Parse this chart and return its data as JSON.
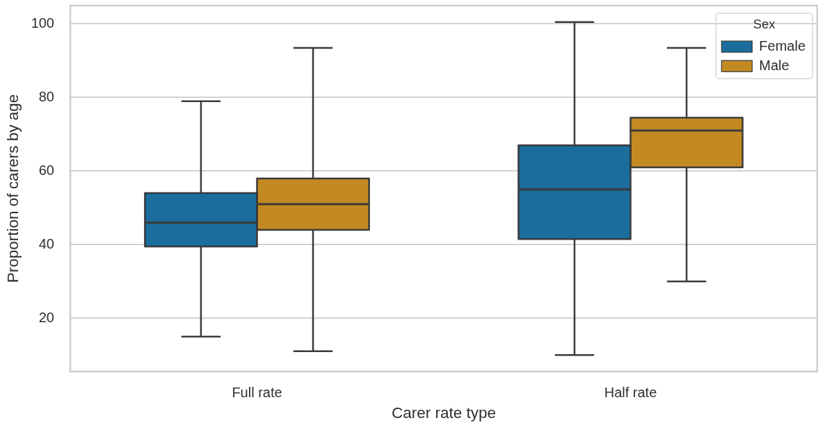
{
  "chart_data": {
    "type": "box",
    "xlabel": "Carer rate type",
    "ylabel": "Proportion of carers by age",
    "legend_title": "Sex",
    "categories": [
      "Full rate",
      "Half rate"
    ],
    "series": [
      {
        "name": "Female",
        "color": "#1a6d9c",
        "boxes": [
          {
            "low": 15,
            "q1": 39.5,
            "median": 46,
            "q3": 54,
            "high": 79
          },
          {
            "low": 10,
            "q1": 41.5,
            "median": 55,
            "q3": 67,
            "high": 100.5
          }
        ]
      },
      {
        "name": "Male",
        "color": "#c48a22",
        "boxes": [
          {
            "low": 11,
            "q1": 44,
            "median": 51,
            "q3": 58,
            "high": 93.5
          },
          {
            "low": 30,
            "q1": 61,
            "median": 71,
            "q3": 74.5,
            "high": 93.5
          }
        ]
      }
    ],
    "ylim": [
      5.5,
      105
    ],
    "yticks": [
      20,
      40,
      60,
      80,
      100
    ],
    "grid": "y",
    "legend": "top right"
  }
}
